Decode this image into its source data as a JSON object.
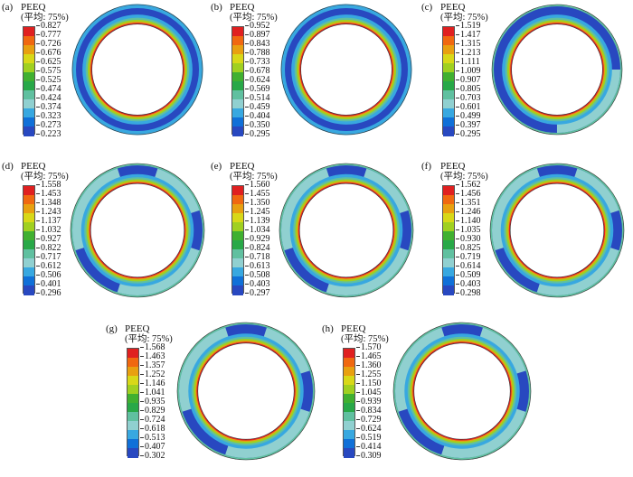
{
  "legend_title": "PEEQ",
  "legend_subtitle": "(平均: 75%)",
  "colors": [
    "#e02020",
    "#f06810",
    "#e8a010",
    "#d8d818",
    "#a0d020",
    "#40b030",
    "#28a848",
    "#60c0a0",
    "#90d0d0",
    "#38a8e0",
    "#1070d8",
    "#2848c0"
  ],
  "panels": [
    {
      "label": "(a)",
      "ticks": [
        "0.827",
        "0.777",
        "0.726",
        "0.676",
        "0.625",
        "0.575",
        "0.525",
        "0.474",
        "0.424",
        "0.374",
        "0.323",
        "0.273",
        "0.223"
      ]
    },
    {
      "label": "(b)",
      "ticks": [
        "0.952",
        "0.897",
        "0.843",
        "0.788",
        "0.733",
        "0.678",
        "0.624",
        "0.569",
        "0.514",
        "0.459",
        "0.404",
        "0.350",
        "0.295"
      ]
    },
    {
      "label": "(c)",
      "ticks": [
        "1.519",
        "1.417",
        "1.315",
        "1.213",
        "1.111",
        "1.009",
        "0.907",
        "0.805",
        "0.703",
        "0.601",
        "0.499",
        "0.397",
        "0.295"
      ]
    },
    {
      "label": "(d)",
      "ticks": [
        "1.558",
        "1.453",
        "1.348",
        "1.243",
        "1.137",
        "1.032",
        "0.927",
        "0.822",
        "0.717",
        "0.612",
        "0.506",
        "0.401",
        "0.296"
      ]
    },
    {
      "label": "(e)",
      "ticks": [
        "1.560",
        "1.455",
        "1.350",
        "1.245",
        "1.139",
        "1.034",
        "0.929",
        "0.824",
        "0.718",
        "0.613",
        "0.508",
        "0.403",
        "0.297"
      ]
    },
    {
      "label": "(f)",
      "ticks": [
        "1.562",
        "1.456",
        "1.351",
        "1.246",
        "1.140",
        "1.035",
        "0.930",
        "0.825",
        "0.719",
        "0.614",
        "0.509",
        "0.403",
        "0.298"
      ]
    },
    {
      "label": "(g)",
      "ticks": [
        "1.568",
        "1.463",
        "1.357",
        "1.252",
        "1.146",
        "1.041",
        "0.935",
        "0.829",
        "0.724",
        "0.618",
        "0.513",
        "0.407",
        "0.302"
      ]
    },
    {
      "label": "(h)",
      "ticks": [
        "1.570",
        "1.465",
        "1.360",
        "1.255",
        "1.150",
        "1.045",
        "0.939",
        "0.834",
        "0.729",
        "0.624",
        "0.519",
        "0.414",
        "0.309"
      ]
    }
  ]
}
